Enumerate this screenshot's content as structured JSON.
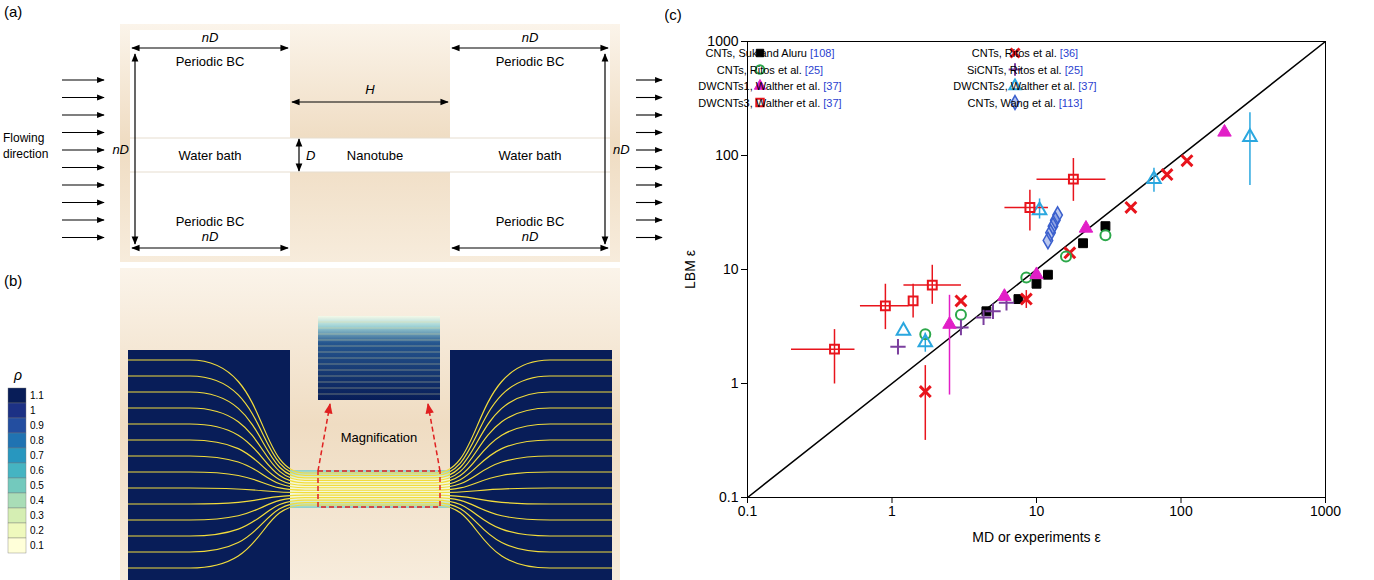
{
  "panel_a": {
    "label": "(a)",
    "bath_size": "nD",
    "boundary": "Periodic BC",
    "bath": "Water bath",
    "tube": "Nanotube",
    "tube_length": "H",
    "tube_diameter": "D",
    "flow": "Flowing direction"
  },
  "panel_b": {
    "label": "(b)",
    "inset": "Magnification",
    "colorbar": {
      "label": "ρ",
      "range": [
        0.1,
        1.1
      ],
      "ticks": [
        1.1,
        1,
        0.9,
        0.8,
        0.7,
        0.6,
        0.5,
        0.4,
        0.3,
        0.2,
        0.1
      ]
    }
  },
  "chart_data": {
    "type": "scatter",
    "panel_label": "(c)",
    "xlabel": "MD or experiments ε",
    "ylabel": "LBM ε",
    "log": true,
    "xlim": [
      0.1,
      1000
    ],
    "ylim": [
      0.1,
      1000
    ],
    "xticks": [
      0.1,
      1,
      10,
      100,
      1000
    ],
    "yticks": [
      0.1,
      1,
      10,
      100,
      1000
    ],
    "legend": "top-left",
    "reference_line": {
      "x": [
        0.1,
        1000
      ],
      "y": [
        0.1,
        1000
      ]
    },
    "series": [
      {
        "name": "CNTs, Suk and Aluru",
        "ref": "[108]",
        "color": "#000000",
        "marker": "square",
        "x": [
          4.5,
          7.5,
          10,
          12,
          21,
          30
        ],
        "y": [
          4.3,
          5.5,
          7.5,
          9,
          17,
          24
        ]
      },
      {
        "name": "CNTs, Ritos et al.",
        "ref": "[36]",
        "color": "#e8141c",
        "marker": "x",
        "x": [
          1.7,
          3,
          8.5,
          17,
          45,
          80,
          110
        ],
        "y": [
          0.85,
          5.3,
          5.5,
          14,
          35,
          68,
          90
        ],
        "yerr": [
          [
            0.32,
            1.45
          ],
          null,
          [
            4.6,
            6.6
          ],
          null,
          null,
          null,
          null
        ]
      },
      {
        "name": "CNTs, Ritos et al.",
        "ref": "[25]",
        "color": "#2ca84a",
        "marker": "circle-open",
        "x": [
          1.7,
          3,
          8.5,
          16,
          30
        ],
        "y": [
          2.7,
          4,
          8.5,
          13,
          20
        ]
      },
      {
        "name": "SiCNTs, Ritos et al.",
        "ref": "[25]",
        "color": "#7b3f9e",
        "marker": "plus",
        "x": [
          1.1,
          3,
          4.3,
          5,
          6.2
        ],
        "y": [
          2.1,
          3.1,
          3.8,
          4.3,
          5.1
        ]
      },
      {
        "name": "DWCNTs1, Walther et al.",
        "ref": "[37]",
        "color": "#e21fc7",
        "marker": "triangle",
        "x": [
          2.5,
          6,
          10,
          22,
          200
        ],
        "y": [
          3.3,
          5.8,
          9,
          23,
          160
        ],
        "yerr": [
          [
            0.8,
            6
          ],
          null,
          null,
          null,
          null
        ]
      },
      {
        "name": "DWCNTs2, Walther et al.",
        "ref": "[37]",
        "color": "#2aa7df",
        "marker": "triangle-open",
        "x": [
          1.2,
          1.7,
          10.5,
          65,
          300
        ],
        "y": [
          2.9,
          2.3,
          33,
          62,
          145
        ],
        "yerr": [
          null,
          [
            1.9,
            2.8
          ],
          [
            28,
            42
          ],
          [
            48,
            78
          ],
          [
            55,
            240
          ]
        ]
      },
      {
        "name": "DWCNTs3, Walther et al.",
        "ref": "[37]",
        "color": "#e8141c",
        "marker": "square-open",
        "x": [
          0.4,
          0.9,
          1.4,
          1.9,
          9,
          18
        ],
        "y": [
          2,
          4.8,
          5.3,
          7.3,
          35,
          62
        ],
        "xerr": [
          [
            0.2,
            0.55
          ],
          [
            0.6,
            1.3
          ],
          null,
          [
            1.2,
            3
          ],
          [
            6,
            12
          ],
          [
            10,
            30
          ]
        ],
        "yerr": [
          [
            1,
            3
          ],
          [
            3,
            7.5
          ],
          [
            3.8,
            7.5
          ],
          [
            5,
            11
          ],
          [
            22,
            50
          ],
          [
            40,
            95
          ]
        ]
      },
      {
        "name": "CNTs, Wang et al.",
        "ref": "[113]",
        "color": "#3a5fcd",
        "marker": "diamond",
        "x": [
          12,
          12.5,
          13,
          13.5,
          14
        ],
        "y": [
          18,
          21,
          24,
          27,
          30
        ]
      }
    ]
  }
}
